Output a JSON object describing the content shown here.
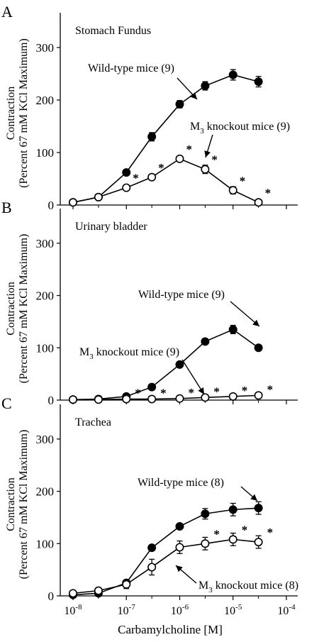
{
  "figure": {
    "xlabel": "Carbamylcholine [M]",
    "ylabel_line1": "Contraction",
    "ylabel_line2": "(Percent 67 mM KCl Maximum)",
    "x_ticks": [
      -8,
      -7,
      -6,
      -5,
      -4
    ],
    "y_ticks": [
      0,
      100,
      200,
      300
    ]
  },
  "chart_data": [
    {
      "type": "line",
      "panel_letter": "A",
      "title": "Stomach Fundus",
      "xscale": "log",
      "xlim": [
        1e-08,
        0.0001
      ],
      "ylim": [
        0,
        350
      ],
      "x": [
        1e-08,
        3e-08,
        1e-07,
        3e-07,
        1e-06,
        3e-06,
        1e-05,
        3e-05
      ],
      "series": [
        {
          "name": "Wild-type mice (9)",
          "marker": "filled-circle",
          "values": [
            5,
            15,
            62,
            130,
            192,
            227,
            248,
            235
          ],
          "errors": [
            3,
            3,
            6,
            8,
            7,
            8,
            10,
            10
          ],
          "label_text": "Wild-type mice (9)"
        },
        {
          "name": "M3 knockout mice (9)",
          "marker": "open-circle",
          "values": [
            5,
            15,
            33,
            53,
            88,
            68,
            28,
            5
          ],
          "errors": [
            3,
            3,
            5,
            5,
            5,
            8,
            7,
            3
          ],
          "significant": [
            false,
            false,
            true,
            true,
            true,
            true,
            true,
            true
          ],
          "label_main": "M",
          "label_sub": "3",
          "label_rest": " knockout mice (9)"
        }
      ]
    },
    {
      "type": "line",
      "panel_letter": "B",
      "title": "Urinary bladder",
      "xscale": "log",
      "xlim": [
        1e-08,
        0.0001
      ],
      "ylim": [
        0,
        350
      ],
      "x": [
        1e-08,
        3e-08,
        1e-07,
        3e-07,
        1e-06,
        3e-06,
        1e-05,
        3e-05
      ],
      "series": [
        {
          "name": "Wild-type mice (9)",
          "marker": "filled-circle",
          "values": [
            1,
            2,
            7,
            25,
            68,
            112,
            135,
            100
          ],
          "errors": [
            1,
            1,
            2,
            3,
            4,
            5,
            8,
            5
          ],
          "label_text": "Wild-type mice (9)"
        },
        {
          "name": "M3 knockout mice (9)",
          "marker": "open-circle",
          "values": [
            1,
            1,
            2,
            2,
            3,
            5,
            7,
            9
          ],
          "errors": [
            1,
            1,
            1,
            1,
            1,
            2,
            3,
            3
          ],
          "significant": [
            false,
            false,
            true,
            true,
            true,
            true,
            true,
            true
          ],
          "label_main": "M",
          "label_sub": "3",
          "label_rest": " knockout mice (9)"
        }
      ]
    },
    {
      "type": "line",
      "panel_letter": "C",
      "title": "Trachea",
      "xscale": "log",
      "xlim": [
        1e-08,
        0.0001
      ],
      "ylim": [
        0,
        350
      ],
      "x": [
        1e-08,
        3e-08,
        1e-07,
        3e-07,
        1e-06,
        3e-06,
        1e-05,
        3e-05
      ],
      "series": [
        {
          "name": "Wild-type mice (8)",
          "marker": "filled-circle",
          "values": [
            2,
            5,
            25,
            92,
            133,
            157,
            165,
            168
          ],
          "errors": [
            2,
            3,
            5,
            5,
            6,
            10,
            12,
            12
          ],
          "label_text": "Wild-type mice (8)"
        },
        {
          "name": "M3 knockout mice (8)",
          "marker": "open-circle",
          "values": [
            5,
            10,
            22,
            55,
            93,
            100,
            108,
            103
          ],
          "errors": [
            3,
            4,
            8,
            15,
            12,
            12,
            12,
            12
          ],
          "significant": [
            false,
            false,
            false,
            false,
            false,
            true,
            true,
            true
          ],
          "label_main": "M",
          "label_sub": "3",
          "label_rest": " knockout mice (8)"
        }
      ]
    }
  ]
}
